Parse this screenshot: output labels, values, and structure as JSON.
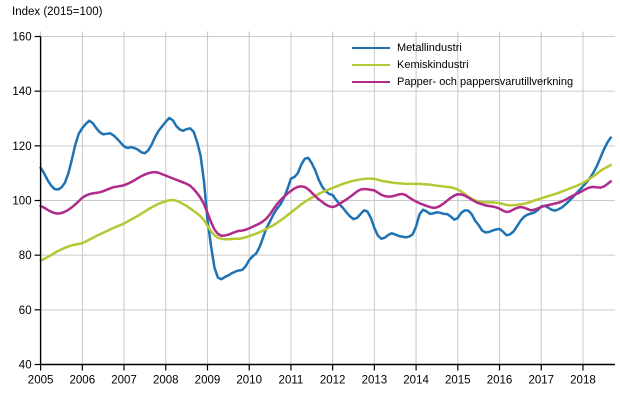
{
  "title": "Index (2015=100)",
  "chart_data": {
    "type": "line",
    "title": "Index (2015=100)",
    "xlabel": "",
    "ylabel": "Index (2015=100)",
    "ylim": [
      40,
      160
    ],
    "y_ticks": [
      40,
      60,
      80,
      100,
      120,
      140,
      160
    ],
    "x_ticks": [
      2005,
      2006,
      2007,
      2008,
      2009,
      2010,
      2011,
      2012,
      2013,
      2014,
      2015,
      2016,
      2017,
      2018
    ],
    "x_start_year": 2005,
    "points_per_year": 12,
    "x_end": "2018-09",
    "grid": true,
    "legend_position": "top-right",
    "grid_color": "#c9c9c9",
    "axis_color": "#000000",
    "series": [
      {
        "name": "Metallindustri",
        "color": "#1e73b4",
        "values": [
          112,
          110,
          107.5,
          105.5,
          104.2,
          104,
          104.8,
          106.5,
          110,
          115,
          120.5,
          124.5,
          126.5,
          128,
          129.2,
          128.3,
          126.5,
          125,
          124.2,
          124.4,
          124.6,
          123.8,
          122.6,
          121.2,
          119.8,
          119.2,
          119.5,
          119.2,
          118.6,
          117.6,
          117.3,
          118.4,
          120.6,
          123.4,
          125.6,
          127.2,
          128.8,
          130.2,
          129.4,
          127.3,
          126,
          125.5,
          126.1,
          126.4,
          125.2,
          121.5,
          116.5,
          107,
          93,
          83.5,
          75.5,
          71.8,
          71.2,
          72,
          72.6,
          73.4,
          74,
          74.4,
          74.6,
          76,
          78.2,
          79.6,
          80.6,
          83,
          86.5,
          90,
          92.4,
          95,
          97,
          98.6,
          101,
          104.2,
          108,
          108.6,
          110,
          113.2,
          115.3,
          115.6,
          113.6,
          111,
          107.6,
          105,
          103.4,
          102.4,
          102,
          100.2,
          98.6,
          97.2,
          95.6,
          94.2,
          93.2,
          93.6,
          95,
          96.4,
          96,
          93.6,
          90,
          87.2,
          86,
          86.4,
          87.4,
          88,
          87.6,
          87,
          86.8,
          86.5,
          86.8,
          87.6,
          90.5,
          95,
          96.6,
          96,
          95.1,
          95.3,
          95.7,
          95.5,
          95.1,
          95,
          94.1,
          93,
          93.6,
          95.5,
          96.4,
          96.3,
          95,
          92.6,
          91,
          89,
          88.3,
          88.5,
          89,
          89.4,
          89.6,
          88.6,
          87.3,
          87.6,
          88.6,
          90.5,
          92.5,
          94,
          94.8,
          95.2,
          95.6,
          96.5,
          97.8,
          98.1,
          97.4,
          96.6,
          96.3,
          96.8,
          97.5,
          98.6,
          99.8,
          101.1,
          102.5,
          103.8,
          105.2,
          106.6,
          108.2,
          110.2,
          112.6,
          115.6,
          118.6,
          121.2,
          123
        ]
      },
      {
        "name": "Kemiskindustri",
        "color": "#b5c833",
        "values": [
          78,
          78.6,
          79.3,
          80,
          80.8,
          81.5,
          82.1,
          82.7,
          83.2,
          83.6,
          83.9,
          84.1,
          84.4,
          85,
          85.7,
          86.3,
          87,
          87.6,
          88.2,
          88.8,
          89.4,
          90,
          90.5,
          91,
          91.6,
          92.3,
          93,
          93.7,
          94.4,
          95.2,
          96,
          96.8,
          97.5,
          98.2,
          98.8,
          99.3,
          99.7,
          100.1,
          100.2,
          99.9,
          99.4,
          98.7,
          98,
          97.1,
          96.2,
          95.3,
          94.2,
          92.8,
          90.8,
          88.8,
          87.3,
          86.4,
          86,
          85.8,
          85.8,
          85.9,
          86,
          86,
          86.2,
          86.5,
          87,
          87.4,
          87.9,
          88.4,
          89,
          89.6,
          90.3,
          91,
          91.8,
          92.7,
          93.6,
          94.6,
          95.6,
          96.6,
          97.6,
          98.6,
          99.5,
          100.3,
          101,
          101.7,
          102.4,
          103,
          103.6,
          104.1,
          104.6,
          105.1,
          105.6,
          106.1,
          106.5,
          106.9,
          107.2,
          107.5,
          107.7,
          107.9,
          108,
          108,
          107.9,
          107.6,
          107.2,
          107,
          106.8,
          106.6,
          106.4,
          106.3,
          106.2,
          106.1,
          106.1,
          106.1,
          106.1,
          106.1,
          106,
          105.9,
          105.8,
          105.6,
          105.4,
          105.3,
          105.1,
          105,
          104.8,
          104.5,
          104,
          103.3,
          102.4,
          101.4,
          100.6,
          100,
          99.7,
          99.4,
          99.3,
          99.3,
          99.3,
          99.2,
          99,
          98.7,
          98.4,
          98.2,
          98.3,
          98.4,
          98.6,
          98.8,
          99.1,
          99.5,
          100,
          100.4,
          100.8,
          101.2,
          101.6,
          102,
          102.4,
          102.8,
          103.3,
          103.8,
          104.3,
          104.8,
          105.3,
          105.8,
          106.4,
          107.2,
          108,
          108.9,
          109.8,
          110.8,
          111.6,
          112.3,
          113
        ]
      },
      {
        "name": "Papper- och pappersvarutillverkning",
        "color": "#b02a8c",
        "values": [
          98,
          97.4,
          96.6,
          95.9,
          95.4,
          95.2,
          95.4,
          95.9,
          96.6,
          97.5,
          98.6,
          99.8,
          101,
          101.8,
          102.3,
          102.6,
          102.8,
          103,
          103.4,
          103.9,
          104.4,
          104.9,
          105.1,
          105.3,
          105.6,
          106.1,
          106.7,
          107.4,
          108.2,
          108.9,
          109.5,
          110,
          110.3,
          110.4,
          110.1,
          109.6,
          109.1,
          108.6,
          108.1,
          107.6,
          107.1,
          106.6,
          106.1,
          105.4,
          104.2,
          102.7,
          101,
          98.6,
          95.5,
          92.2,
          89.4,
          87.8,
          87.1,
          87.2,
          87.5,
          88,
          88.5,
          88.9,
          89,
          89.3,
          89.8,
          90.4,
          91,
          91.6,
          92.4,
          93.5,
          95,
          96.9,
          98.7,
          100.1,
          101.4,
          102.5,
          103.5,
          104.4,
          105,
          105.2,
          104.9,
          104.1,
          102.9,
          101.6,
          100.4,
          99.5,
          98.5,
          97.9,
          97.6,
          98,
          98.8,
          99.6,
          100.4,
          101.3,
          102.3,
          103.3,
          104,
          104.2,
          104.1,
          103.9,
          103.7,
          102.9,
          102.1,
          101.6,
          101.4,
          101.5,
          101.8,
          102.2,
          102.4,
          102,
          101.1,
          100.3,
          99.6,
          99,
          98.5,
          98,
          97.6,
          97.3,
          97.5,
          98.1,
          99,
          100,
          101,
          101.8,
          102.3,
          102.2,
          101.8,
          101.1,
          100.3,
          99.6,
          99,
          98.6,
          98.2,
          98,
          97.8,
          97.5,
          97,
          96.3,
          95.8,
          96,
          96.7,
          97.3,
          97.6,
          97.4,
          96.9,
          96.4,
          96.6,
          97.1,
          97.6,
          98,
          98.3,
          98.6,
          98.9,
          99.2,
          99.7,
          100.3,
          101,
          101.7,
          102.3,
          102.9,
          103.6,
          104.3,
          104.8,
          105,
          104.8,
          104.7,
          105.1,
          106,
          107
        ]
      }
    ]
  }
}
